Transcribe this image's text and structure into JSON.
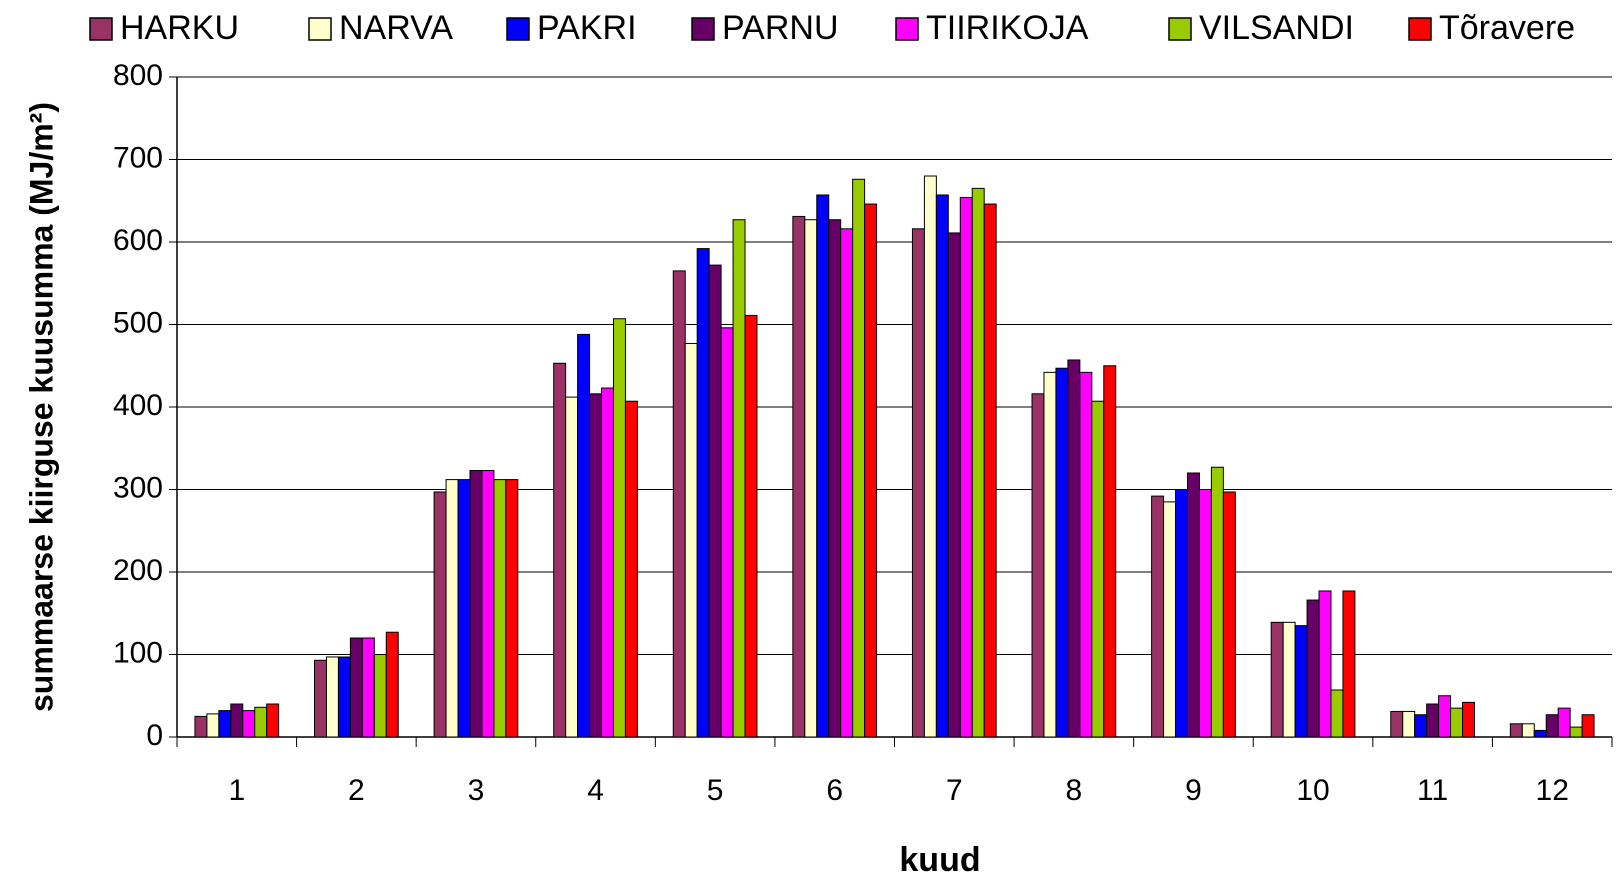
{
  "chart_data": {
    "type": "bar",
    "categories": [
      "1",
      "2",
      "3",
      "4",
      "5",
      "6",
      "7",
      "8",
      "9",
      "10",
      "11",
      "12"
    ],
    "series": [
      {
        "name": "HARKU",
        "color": "#993366",
        "values": [
          25,
          93,
          297,
          453,
          565,
          631,
          616,
          416,
          292,
          139,
          31,
          16
        ]
      },
      {
        "name": "NARVA",
        "color": "#ffffcc",
        "values": [
          28,
          97,
          312,
          412,
          477,
          627,
          680,
          442,
          285,
          139,
          31,
          16
        ]
      },
      {
        "name": "PAKRI",
        "color": "#0000ff",
        "values": [
          32,
          97,
          312,
          488,
          592,
          657,
          657,
          447,
          300,
          135,
          27,
          8
        ]
      },
      {
        "name": "PARNU",
        "color": "#660066",
        "values": [
          40,
          120,
          323,
          416,
          572,
          627,
          611,
          457,
          320,
          166,
          40,
          27
        ]
      },
      {
        "name": "TIIRIKOJA",
        "color": "#ff00ff",
        "values": [
          32,
          120,
          323,
          423,
          496,
          616,
          654,
          442,
          300,
          177,
          50,
          35
        ]
      },
      {
        "name": "VILSANDI",
        "color": "#99cc00",
        "values": [
          36,
          100,
          312,
          507,
          627,
          676,
          665,
          407,
          327,
          57,
          35,
          12
        ]
      },
      {
        "name": "Tõravere",
        "color": "#ff0000",
        "values": [
          40,
          127,
          312,
          407,
          511,
          646,
          646,
          450,
          297,
          177,
          42,
          27
        ]
      }
    ],
    "xlabel": "kuud",
    "ylabel": "summaarse kiirguse kuusumma (MJ/m²)",
    "ylim": [
      0,
      800
    ],
    "yticks": [
      0,
      100,
      200,
      300,
      400,
      500,
      600,
      700,
      800
    ],
    "grid": true,
    "legend": "top"
  }
}
